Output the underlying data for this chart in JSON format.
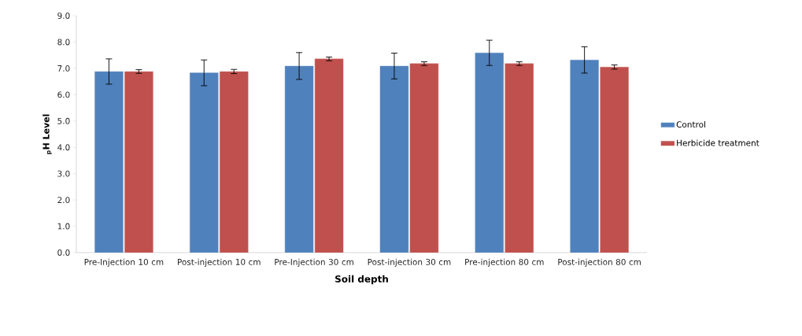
{
  "chart_data": {
    "type": "bar",
    "categories": [
      "Pre-Injection 10 cm",
      "Post-injection 10 cm",
      "Pre-Injection 30 cm",
      "Post-injection 30 cm",
      "Pre-injection 80 cm",
      "Post-injection 80 cm"
    ],
    "series": [
      {
        "name": "Control",
        "color": "#4f81bd",
        "values": [
          6.88,
          6.83,
          7.09,
          7.09,
          7.59,
          7.32
        ],
        "errors": [
          0.48,
          0.49,
          0.51,
          0.49,
          0.48,
          0.5
        ]
      },
      {
        "name": "Herbicide treatment",
        "color": "#c0504d",
        "values": [
          6.88,
          6.88,
          7.36,
          7.18,
          7.18,
          7.05
        ],
        "errors": [
          0.07,
          0.08,
          0.07,
          0.07,
          0.07,
          0.08
        ]
      }
    ],
    "xlabel": "Soil depth",
    "ylabel": "$_{p}$H Level",
    "ylim": [
      0,
      9
    ],
    "yticks": [
      {
        "value": 0,
        "label": "0.0"
      },
      {
        "value": 1,
        "label": "1.0"
      },
      {
        "value": 2,
        "label": "2.0"
      },
      {
        "value": 3,
        "label": "3.0"
      },
      {
        "value": 4,
        "label": "4.0"
      },
      {
        "value": 5,
        "label": "5.0"
      },
      {
        "value": 6,
        "label": "6.0"
      },
      {
        "value": 7,
        "label": "7.0"
      },
      {
        "value": 8,
        "label": "8.0"
      },
      {
        "value": 9,
        "label": "9.0"
      }
    ],
    "legend": "right"
  }
}
